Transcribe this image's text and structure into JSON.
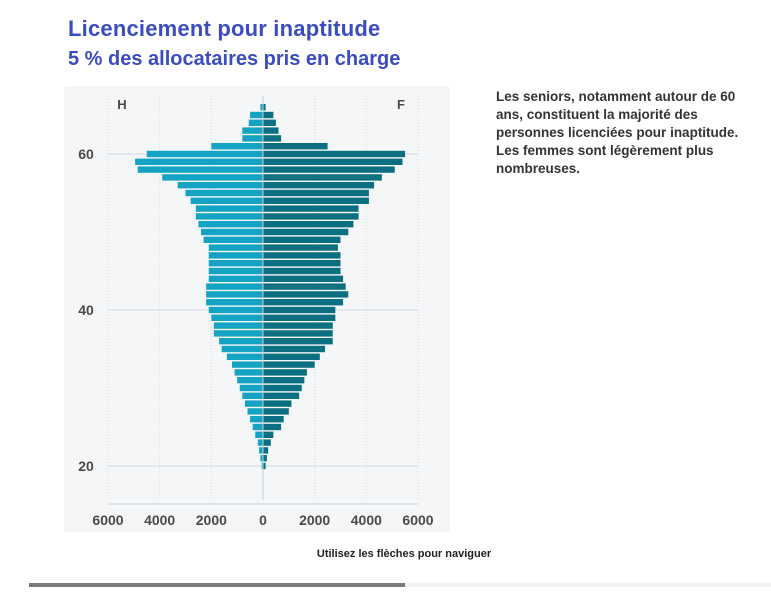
{
  "title": "Licenciement pour inaptitude",
  "subtitle": "5 % des allocataires pris en charge",
  "note": "Les seniors, notamment autour de 60 ans, constituent la majorité des personnes licenciées pour inaptitude. Les femmes sont légèrement plus nombreuses.",
  "nav_hint": "Utilisez les flèches pour naviguer",
  "progress": {
    "value": 0.507
  },
  "colors": {
    "men": "#15a3c4",
    "women": "#0b6f82",
    "grid": "#d5d9dc",
    "axis_text": "#4a4a4a"
  },
  "chart_data": {
    "type": "population-pyramid",
    "title": "Licenciement pour inaptitude",
    "subtitle": "5 % des allocataires pris en charge",
    "corner_labels": {
      "left": "H",
      "right": "F"
    },
    "xlim": [
      -6000,
      6000
    ],
    "x_ticks": [
      -6000,
      -4000,
      -2000,
      0,
      2000,
      4000,
      6000
    ],
    "x_tick_labels": [
      "6000",
      "4000",
      "2000",
      "0",
      "2000",
      "4000",
      "6000"
    ],
    "ylim": [
      18,
      68
    ],
    "y_ticks": [
      20,
      40,
      60
    ],
    "y_tick_labels": [
      "20",
      "40",
      "60"
    ],
    "ages": [
      66,
      65,
      64,
      63,
      62,
      61,
      60,
      59,
      58,
      57,
      56,
      55,
      54,
      53,
      52,
      51,
      50,
      49,
      48,
      47,
      46,
      45,
      44,
      43,
      42,
      41,
      40,
      39,
      38,
      37,
      36,
      35,
      34,
      33,
      32,
      31,
      30,
      29,
      28,
      27,
      26,
      25,
      24,
      23,
      22,
      21,
      20
    ],
    "series": [
      {
        "name": "H",
        "side": "left",
        "values": [
          100,
          500,
          550,
          800,
          800,
          2000,
          4500,
          4950,
          4850,
          3900,
          3300,
          3000,
          2800,
          2600,
          2600,
          2500,
          2400,
          2300,
          2100,
          2100,
          2100,
          2100,
          2100,
          2200,
          2200,
          2200,
          2100,
          2000,
          1900,
          1900,
          1700,
          1600,
          1400,
          1200,
          1100,
          1000,
          900,
          800,
          700,
          600,
          500,
          400,
          300,
          200,
          150,
          100,
          50
        ]
      },
      {
        "name": "F",
        "side": "right",
        "values": [
          100,
          400,
          500,
          600,
          700,
          2500,
          5500,
          5400,
          5100,
          4600,
          4300,
          4100,
          4100,
          3700,
          3700,
          3500,
          3300,
          3000,
          2900,
          3000,
          3000,
          3000,
          3100,
          3200,
          3300,
          3100,
          2800,
          2800,
          2700,
          2700,
          2700,
          2400,
          2200,
          2000,
          1700,
          1600,
          1500,
          1400,
          1100,
          1000,
          800,
          700,
          400,
          300,
          200,
          150,
          100
        ]
      }
    ]
  }
}
